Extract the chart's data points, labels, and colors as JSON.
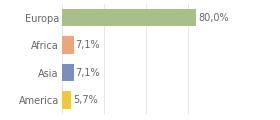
{
  "categories": [
    "America",
    "Asia",
    "Africa",
    "Europa"
  ],
  "values": [
    5.7,
    7.1,
    7.1,
    80.0
  ],
  "bar_colors": [
    "#f0c840",
    "#7b8fbf",
    "#e8a87c",
    "#a8bf8a"
  ],
  "labels": [
    "5,7%",
    "7,1%",
    "7,1%",
    "80,0%"
  ],
  "xlim": [
    0,
    100
  ],
  "background_color": "#ffffff",
  "text_color": "#666666",
  "bar_height": 0.65,
  "label_fontsize": 7,
  "tick_label_fontsize": 7,
  "grid_color": "#dddddd",
  "grid_ticks": [
    0,
    25,
    50,
    75,
    100
  ]
}
